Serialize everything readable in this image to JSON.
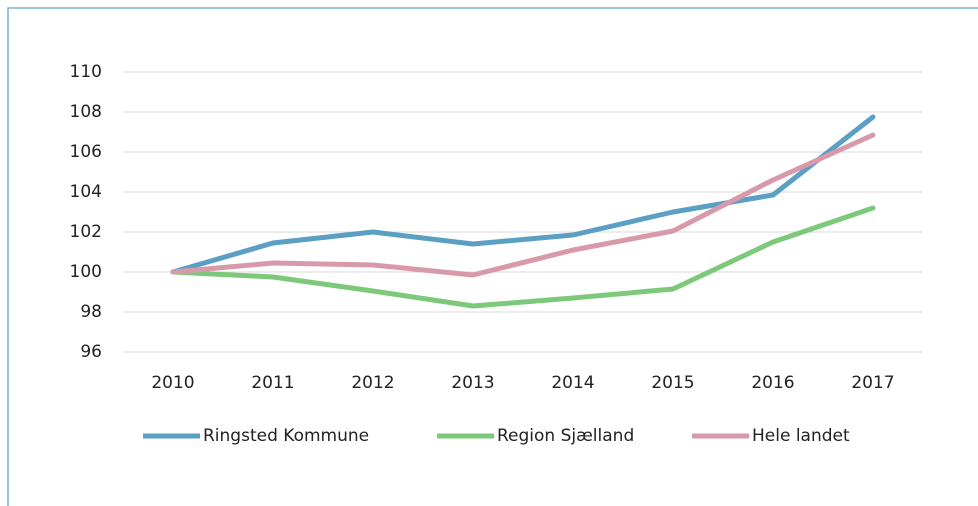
{
  "chart_data": {
    "type": "line",
    "categories": [
      "2010",
      "2011",
      "2012",
      "2013",
      "2014",
      "2015",
      "2016",
      "2017"
    ],
    "series": [
      {
        "name": "Ringsted Kommune",
        "color": "#5b9fc4",
        "values": [
          100,
          101.45,
          102.0,
          101.4,
          101.85,
          103.0,
          103.85,
          107.75
        ]
      },
      {
        "name": "Region Sjælland",
        "color": "#7dc97a",
        "values": [
          100,
          99.75,
          99.05,
          98.3,
          98.7,
          99.15,
          101.5,
          103.2
        ]
      },
      {
        "name": "Hele landet",
        "color": "#d89aaa",
        "values": [
          100,
          100.45,
          100.35,
          99.85,
          101.1,
          102.05,
          104.6,
          106.85
        ]
      }
    ],
    "ylim": [
      96,
      110
    ],
    "yticks": [
      96,
      98,
      100,
      102,
      104,
      106,
      108,
      110
    ],
    "grid": true,
    "legend": "bottom"
  }
}
